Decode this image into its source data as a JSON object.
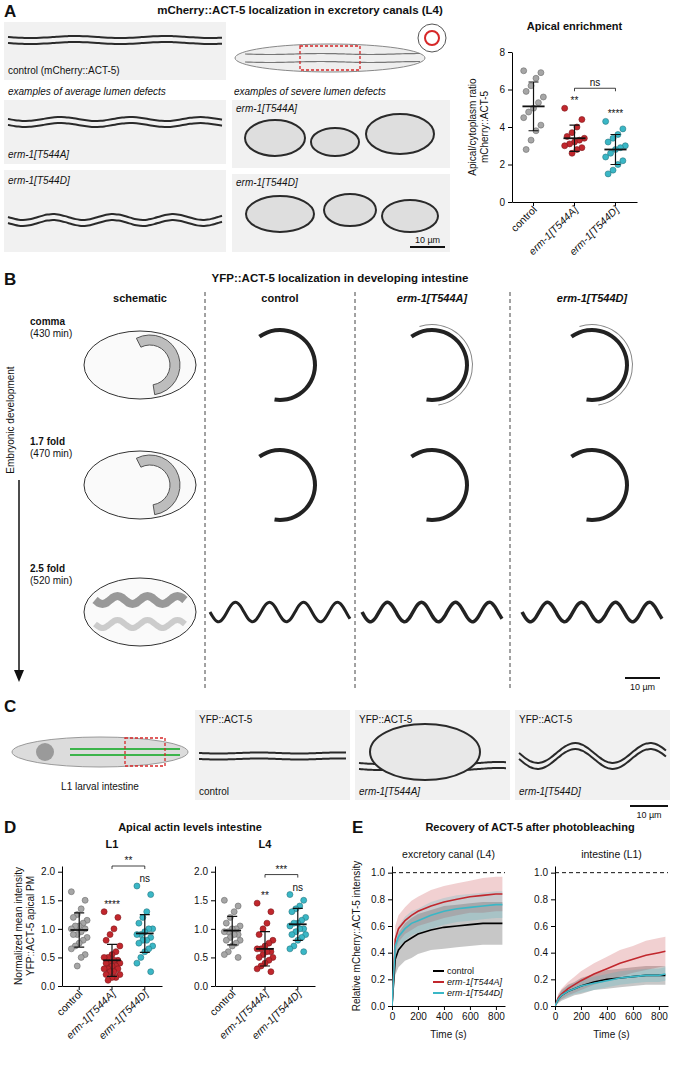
{
  "figure": {
    "panel_labels": [
      "A",
      "B",
      "C",
      "D",
      "E"
    ],
    "a": {
      "title": "mCherry::ACT-5 localization in excretory canals (L4)",
      "control_label": "control (mCherry::ACT-5)",
      "average_caption": "examples of average lumen defects",
      "severe_caption": "examples of severe lumen defects",
      "image_labels": [
        "erm-1[T544A]",
        "erm-1[T544D]",
        "erm-1[T544A]",
        "erm-1[T544D]"
      ],
      "scale_bar": "10 µm"
    },
    "b": {
      "title": "YFP::ACT-5 localization in developing intestine",
      "columns": [
        "schematic",
        "control",
        "erm-1[T544A]",
        "erm-1[T544D]"
      ],
      "stages": [
        "comma",
        "1.7 fold",
        "2.5 fold"
      ],
      "times": [
        "(430 min)",
        "(470 min)",
        "(520 min)"
      ],
      "axis_label": "Embryonic development",
      "scale_bar": "10 µm"
    },
    "c": {
      "schematic_label": "L1 larval intestine",
      "channel": "YFP::ACT-5",
      "image_labels": [
        "control",
        "erm-1[T544A]",
        "erm-1[T544D]"
      ],
      "scale_bar": "10 µm"
    },
    "d": {
      "title": "Apical actin levels intestine"
    },
    "e": {
      "title": "Recovery of ACT-5 after photobleaching"
    }
  },
  "chart_data": [
    {
      "type": "dot",
      "title": "Apical enrichment",
      "categories": [
        "control",
        "erm-1[T544A]",
        "erm-1[T544D]"
      ],
      "colors": [
        "#a6a6a6",
        "#c1272d",
        "#3ab7c6"
      ],
      "values": [
        [
          7.0,
          6.9,
          6.6,
          6.2,
          5.9,
          5.6,
          5.3,
          5.0,
          4.8,
          4.5,
          4.1,
          3.8,
          3.3,
          2.8
        ],
        [
          5.0,
          4.4,
          4.0,
          3.7,
          3.5,
          3.4,
          3.3,
          3.2,
          3.1,
          3.0,
          2.9,
          2.8,
          2.6
        ],
        [
          4.3,
          3.9,
          3.6,
          3.4,
          3.2,
          3.0,
          2.9,
          2.8,
          2.6,
          2.4,
          2.2,
          2.0,
          1.7,
          1.5
        ]
      ],
      "mean": [
        5.1,
        3.4,
        2.8
      ],
      "sd": [
        1.3,
        0.7,
        0.8
      ],
      "ylabel": [
        "Apical/cytoplasm ratio",
        "mCherry::ACT-5"
      ],
      "ylim": [
        0,
        8
      ],
      "yticks": [
        0,
        2,
        4,
        6,
        8
      ],
      "annotations": [
        {
          "label": "**",
          "at": 1
        },
        {
          "label": "****",
          "at": 2
        },
        {
          "label": "ns",
          "from": 1,
          "to": 2
        }
      ]
    },
    {
      "type": "dot",
      "title": "L1",
      "categories": [
        "control",
        "erm-1[T544A]",
        "erm-1[T544D]"
      ],
      "colors": [
        "#a6a6a6",
        "#c1272d",
        "#3ab7c6"
      ],
      "values": [
        [
          1.65,
          1.5,
          1.35,
          1.25,
          1.2,
          1.15,
          1.1,
          1.05,
          1.05,
          1.0,
          1.0,
          0.95,
          0.9,
          0.9,
          0.85,
          0.8,
          0.75,
          0.7,
          0.65,
          0.55,
          0.5,
          0.35
        ],
        [
          1.3,
          1.2,
          1.0,
          0.9,
          0.8,
          0.7,
          0.6,
          0.55,
          0.5,
          0.5,
          0.45,
          0.45,
          0.4,
          0.4,
          0.4,
          0.35,
          0.35,
          0.3,
          0.3,
          0.3,
          0.25,
          0.25,
          0.2,
          0.2,
          0.15,
          0.15,
          0.1
        ],
        [
          1.75,
          1.6,
          1.3,
          1.2,
          1.1,
          1.0,
          1.0,
          0.95,
          0.9,
          0.9,
          0.85,
          0.8,
          0.8,
          0.75,
          0.7,
          0.65,
          0.6,
          0.5,
          0.4,
          0.25
        ]
      ],
      "mean": [
        0.98,
        0.45,
        0.92
      ],
      "sd": [
        0.3,
        0.28,
        0.33
      ],
      "ylabel": [
        "Normalized mean intensity",
        "YFP::ACT-5 apical PM"
      ],
      "ylim": [
        0,
        2.1
      ],
      "yticks": [
        {
          "value": 0,
          "label": "0.0"
        },
        0.5,
        {
          "value": 1,
          "label": "1.0"
        },
        1.5,
        {
          "value": 2,
          "label": "2.0"
        }
      ],
      "annotations": [
        {
          "label": "****",
          "at": 1
        },
        {
          "label": "ns",
          "at": 2
        },
        {
          "label": "**",
          "from": 1,
          "to": 2
        }
      ]
    },
    {
      "type": "dot",
      "title": "L4",
      "categories": [
        "control",
        "erm-1[T544A]",
        "erm-1[T544D]"
      ],
      "colors": [
        "#a6a6a6",
        "#c1272d",
        "#3ab7c6"
      ],
      "values": [
        [
          1.5,
          1.4,
          1.3,
          1.2,
          1.1,
          1.05,
          1.0,
          1.0,
          0.95,
          0.95,
          0.9,
          0.9,
          0.85,
          0.8,
          0.8,
          0.75,
          0.7,
          0.6,
          0.55,
          0.5
        ],
        [
          1.45,
          1.3,
          1.1,
          1.0,
          0.9,
          0.8,
          0.75,
          0.7,
          0.65,
          0.65,
          0.6,
          0.6,
          0.55,
          0.5,
          0.5,
          0.45,
          0.4,
          0.35,
          0.3,
          0.25
        ],
        [
          1.6,
          1.5,
          1.4,
          1.35,
          1.3,
          1.2,
          1.15,
          1.1,
          1.1,
          1.05,
          1.0,
          1.0,
          0.95,
          0.9,
          0.9,
          0.85,
          0.8,
          0.7,
          0.65,
          0.6
        ]
      ],
      "mean": [
        0.97,
        0.65,
        1.08
      ],
      "sd": [
        0.25,
        0.3,
        0.28
      ],
      "ylim": [
        0,
        2.1
      ],
      "yticks": [
        {
          "value": 0,
          "label": "0.0"
        },
        0.5,
        {
          "value": 1,
          "label": "1.0"
        },
        1.5,
        {
          "value": 2,
          "label": "2.0"
        }
      ],
      "annotations": [
        {
          "label": "**",
          "at": 1
        },
        {
          "label": "ns",
          "at": 2
        },
        {
          "label": "***",
          "from": 1,
          "to": 2
        }
      ]
    },
    {
      "type": "line",
      "title": "excretory canal (L4)",
      "x": [
        0,
        25,
        50,
        100,
        150,
        200,
        300,
        400,
        500,
        600,
        700,
        800,
        850
      ],
      "series": [
        {
          "name": "control",
          "color": "#000000",
          "values": [
            0,
            0.35,
            0.42,
            0.48,
            0.51,
            0.54,
            0.57,
            0.59,
            0.6,
            0.61,
            0.62,
            0.62,
            0.62
          ],
          "errors": [
            0,
            0.12,
            0.13,
            0.14,
            0.15,
            0.15,
            0.15,
            0.16,
            0.16,
            0.16,
            0.16,
            0.16,
            0.16
          ]
        },
        {
          "name": "erm-1[T544A]",
          "color": "#c1272d",
          "values": [
            0,
            0.5,
            0.58,
            0.64,
            0.68,
            0.71,
            0.75,
            0.78,
            0.8,
            0.82,
            0.83,
            0.84,
            0.84
          ],
          "errors": [
            0,
            0.1,
            0.1,
            0.1,
            0.11,
            0.11,
            0.12,
            0.12,
            0.12,
            0.12,
            0.13,
            0.13,
            0.13
          ]
        },
        {
          "name": "erm-1[T544D]",
          "color": "#3ab7c6",
          "values": [
            0,
            0.45,
            0.52,
            0.58,
            0.62,
            0.64,
            0.68,
            0.71,
            0.73,
            0.74,
            0.75,
            0.76,
            0.76
          ],
          "errors": [
            0,
            0.08,
            0.08,
            0.09,
            0.09,
            0.09,
            0.1,
            0.1,
            0.1,
            0.1,
            0.1,
            0.1,
            0.1
          ]
        }
      ],
      "xlabel": "Time (s)",
      "ylabel": "Relative mCherry::ACT-5 intensity",
      "xlim": [
        0,
        870
      ],
      "ylim": [
        0,
        1.05
      ],
      "xticks": [
        0,
        200,
        400,
        600,
        800
      ],
      "yticks": [
        {
          "value": 0,
          "label": "0.0"
        },
        0.2,
        0.4,
        0.6,
        0.8,
        {
          "value": 1,
          "label": "1.0"
        }
      ],
      "reference_line": 1,
      "legend": "bottom-right"
    },
    {
      "type": "line",
      "title": "intestine (L1)",
      "x": [
        0,
        25,
        50,
        100,
        150,
        200,
        300,
        400,
        500,
        600,
        700,
        800,
        850
      ],
      "series": [
        {
          "name": "control",
          "color": "#000000",
          "values": [
            0,
            0.05,
            0.08,
            0.11,
            0.13,
            0.15,
            0.18,
            0.2,
            0.21,
            0.22,
            0.23,
            0.23,
            0.23
          ],
          "errors": [
            0,
            0.03,
            0.04,
            0.05,
            0.05,
            0.06,
            0.06,
            0.07,
            0.07,
            0.07,
            0.07,
            0.07,
            0.07
          ]
        },
        {
          "name": "erm-1[T544A]",
          "color": "#c1272d",
          "values": [
            0,
            0.06,
            0.09,
            0.13,
            0.16,
            0.19,
            0.24,
            0.28,
            0.32,
            0.35,
            0.38,
            0.4,
            0.41
          ],
          "errors": [
            0,
            0.03,
            0.04,
            0.05,
            0.06,
            0.07,
            0.08,
            0.09,
            0.1,
            0.1,
            0.11,
            0.11,
            0.11
          ]
        },
        {
          "name": "erm-1[T544D]",
          "color": "#3ab7c6",
          "values": [
            0,
            0.05,
            0.08,
            0.11,
            0.13,
            0.15,
            0.17,
            0.19,
            0.21,
            0.22,
            0.23,
            0.23,
            0.24
          ],
          "errors": [
            0,
            0.02,
            0.03,
            0.04,
            0.04,
            0.05,
            0.05,
            0.05,
            0.05,
            0.05,
            0.05,
            0.05,
            0.05
          ]
        }
      ],
      "xlabel": "Time (s)",
      "xlim": [
        0,
        870
      ],
      "ylim": [
        0,
        1.05
      ],
      "xticks": [
        0,
        200,
        400,
        600,
        800
      ],
      "yticks": [
        {
          "value": 0,
          "label": "0.0"
        },
        0.2,
        0.4,
        0.6,
        0.8,
        {
          "value": 1,
          "label": "1.0"
        }
      ],
      "reference_line": 1
    }
  ]
}
